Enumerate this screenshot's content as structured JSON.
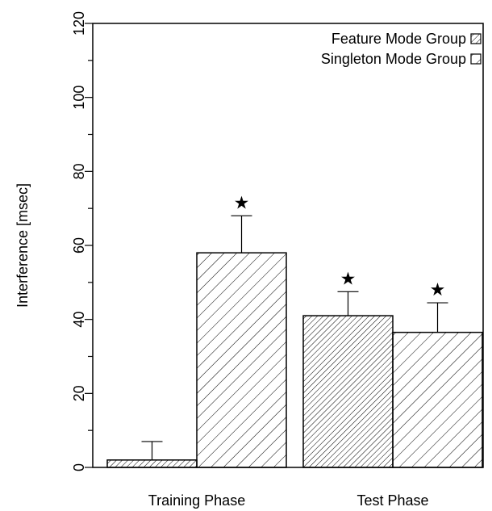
{
  "chart_data": {
    "type": "bar",
    "title": "",
    "xlabel": "",
    "ylabel": "Interference [msec]",
    "ylim": [
      0,
      120
    ],
    "yticks": [
      0,
      20,
      40,
      60,
      80,
      100,
      120
    ],
    "yticks_minor_step": 10,
    "categories": [
      "Training Phase",
      "Test Phase"
    ],
    "series": [
      {
        "name": "Feature Mode Group",
        "values": [
          2,
          41
        ],
        "errors": [
          5,
          6.5
        ],
        "significant": [
          false,
          true
        ],
        "hatch": "dense"
      },
      {
        "name": "Singleton Mode Group",
        "values": [
          58,
          36.5
        ],
        "errors": [
          10,
          8
        ],
        "significant": [
          true,
          true
        ],
        "hatch": "sparse"
      }
    ],
    "significance_marker": "★",
    "legend_position": "top-right",
    "grid": false
  }
}
